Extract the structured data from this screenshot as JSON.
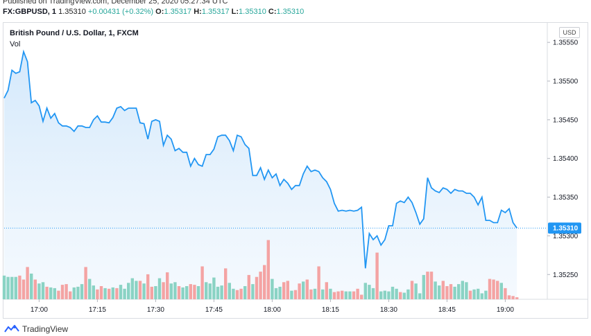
{
  "header": {
    "published": "Published on TradingView.com, December 25, 2020 05:27:34 UTC",
    "symbol": "FX:GBPUSD, 1",
    "last": "1.35310",
    "change": "+0.00431 (+0.32%)",
    "o_label": "O:",
    "o_value": "1.35317",
    "h_label": "H:",
    "h_value": "1.35317",
    "l_label": "L:",
    "l_value": "1.35310",
    "c_label": "C:",
    "c_value": "1.35310"
  },
  "chart_title": "British Pound / U.S. Dollar, 1, FXCM",
  "vol_label": "Vol",
  "currency": "USD",
  "last_price_label": "1.35310",
  "footer": {
    "brand": "TradingView"
  },
  "colors": {
    "line": "#2196f3",
    "up_vol": "#26a69a",
    "down_vol": "#ef5350",
    "area_top": "#cfe6fb"
  },
  "chart_data": {
    "type": "area",
    "title": "British Pound / U.S. Dollar, 1, FXCM",
    "x_ticks": [
      "17:00",
      "17:15",
      "17:30",
      "17:45",
      "18:00",
      "18:15",
      "18:30",
      "18:45",
      "19:00"
    ],
    "y_ticks": [
      "1.35550",
      "1.35500",
      "1.35450",
      "1.35400",
      "1.35350",
      "1.35300",
      "1.35250"
    ],
    "ylim": [
      1.35218,
      1.3556
    ],
    "x_start": "16:51",
    "price": [
      1.35478,
      1.35488,
      1.35514,
      1.3551,
      1.35512,
      1.35538,
      1.35525,
      1.35472,
      1.35475,
      1.35468,
      1.35448,
      1.35465,
      1.35452,
      1.35458,
      1.35446,
      1.35442,
      1.35442,
      1.3544,
      1.35435,
      1.35442,
      1.35442,
      1.3544,
      1.3544,
      1.3545,
      1.35455,
      1.35447,
      1.35447,
      1.35446,
      1.35453,
      1.35465,
      1.35467,
      1.35462,
      1.35465,
      1.35465,
      1.35465,
      1.35446,
      1.35445,
      1.35425,
      1.35448,
      1.3545,
      1.35448,
      1.35417,
      1.3543,
      1.35425,
      1.3541,
      1.35413,
      1.35408,
      1.35408,
      1.3539,
      1.354,
      1.35392,
      1.3539,
      1.35405,
      1.35405,
      1.35412,
      1.35428,
      1.3543,
      1.3543,
      1.35423,
      1.3541,
      1.3543,
      1.35428,
      1.35418,
      1.35413,
      1.35378,
      1.35378,
      1.35388,
      1.35373,
      1.35385,
      1.35375,
      1.3538,
      1.35365,
      1.35373,
      1.35368,
      1.3536,
      1.35365,
      1.35365,
      1.3538,
      1.3539,
      1.35383,
      1.35385,
      1.35383,
      1.35375,
      1.3537,
      1.3536,
      1.35342,
      1.35332,
      1.35333,
      1.35332,
      1.35333,
      1.35332,
      1.35333,
      1.35337,
      1.35258,
      1.35303,
      1.35295,
      1.353,
      1.35288,
      1.35295,
      1.35313,
      1.35313,
      1.35342,
      1.35345,
      1.35343,
      1.3535,
      1.35343,
      1.3533,
      1.35315,
      1.35322,
      1.35375,
      1.35362,
      1.35358,
      1.35356,
      1.35362,
      1.3536,
      1.35355,
      1.3536,
      1.35358,
      1.35358,
      1.35355,
      1.35355,
      1.3535,
      1.3534,
      1.3535,
      1.3532,
      1.3532,
      1.35317,
      1.35317,
      1.35333,
      1.3533,
      1.35335,
      1.35317,
      1.3531
    ],
    "volume": [
      36,
      34,
      34,
      34,
      36,
      30,
      49,
      39,
      30,
      24,
      26,
      19,
      18,
      17,
      13,
      22,
      23,
      12,
      18,
      19,
      23,
      49,
      31,
      21,
      15,
      20,
      17,
      16,
      18,
      17,
      22,
      16,
      25,
      32,
      28,
      28,
      24,
      38,
      19,
      20,
      32,
      26,
      41,
      24,
      26,
      20,
      18,
      20,
      23,
      22,
      20,
      50,
      26,
      24,
      33,
      19,
      21,
      47,
      25,
      16,
      14,
      16,
      20,
      37,
      23,
      34,
      42,
      52,
      90,
      31,
      17,
      19,
      26,
      28,
      13,
      14,
      24,
      27,
      30,
      15,
      16,
      50,
      15,
      26,
      16,
      11,
      12,
      13,
      12,
      12,
      12,
      16,
      7,
      25,
      22,
      17,
      71,
      12,
      13,
      12,
      19,
      16,
      11,
      10,
      15,
      28,
      24,
      9,
      37,
      42,
      42,
      27,
      21,
      28,
      20,
      23,
      19,
      23,
      28,
      26,
      13,
      15,
      16,
      9,
      13,
      31,
      30,
      28,
      25,
      17,
      6,
      5,
      3
    ],
    "volume_dir": [
      "u",
      "u",
      "u",
      "u",
      "d",
      "d",
      "d",
      "u",
      "d",
      "u",
      "u",
      "d",
      "u",
      "u",
      "d",
      "d",
      "d",
      "d",
      "u",
      "u",
      "u",
      "d",
      "u",
      "u",
      "d",
      "d",
      "u",
      "d",
      "u",
      "d",
      "u",
      "u",
      "u",
      "u",
      "u",
      "d",
      "u",
      "d",
      "d",
      "u",
      "u",
      "d",
      "d",
      "u",
      "u",
      "d",
      "u",
      "u",
      "d",
      "d",
      "u",
      "d",
      "u",
      "u",
      "u",
      "u",
      "u",
      "d",
      "u",
      "u",
      "d",
      "d",
      "u",
      "d",
      "u",
      "d",
      "d",
      "d",
      "d",
      "u",
      "u",
      "u",
      "d",
      "d",
      "u",
      "d",
      "d",
      "u",
      "d",
      "d",
      "u",
      "d",
      "u",
      "d",
      "u",
      "d",
      "d",
      "d",
      "u",
      "u",
      "d",
      "d",
      "d",
      "u",
      "u",
      "u",
      "d",
      "u",
      "u",
      "u",
      "u",
      "u",
      "d",
      "u",
      "u",
      "d",
      "u",
      "u",
      "u",
      "d",
      "d",
      "u",
      "u",
      "d",
      "d",
      "d",
      "u",
      "u",
      "u",
      "u",
      "d",
      "u",
      "u",
      "u",
      "u",
      "d",
      "d",
      "d",
      "u",
      "d",
      "d",
      "d",
      "d"
    ]
  }
}
